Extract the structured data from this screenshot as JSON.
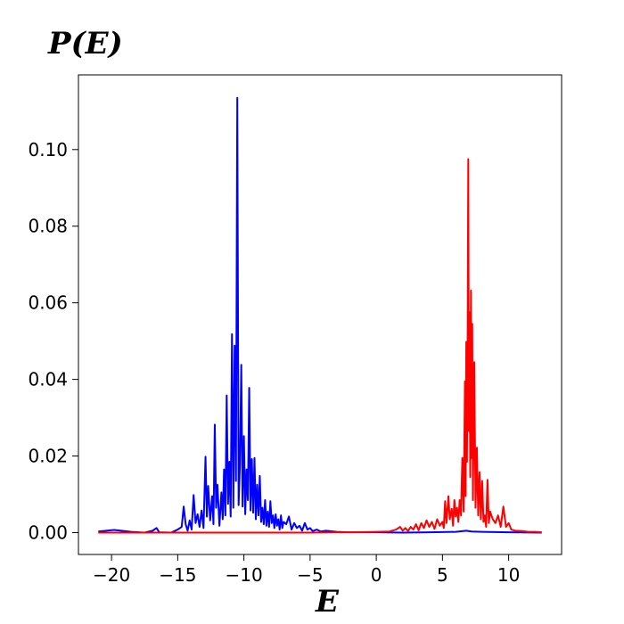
{
  "chart_data": {
    "type": "line",
    "title": "",
    "ylabel": "P(E)",
    "xlabel": "E",
    "xlim": [
      -22.5,
      14.0
    ],
    "ylim": [
      -0.0057,
      0.1195
    ],
    "xticks": [
      -20,
      -15,
      -10,
      -5,
      0,
      5,
      10
    ],
    "xtick_labels": [
      "−20",
      "−15",
      "−10",
      "−5",
      "0",
      "5",
      "10"
    ],
    "yticks": [
      0.0,
      0.02,
      0.04,
      0.06,
      0.08,
      0.1
    ],
    "ytick_labels": [
      "0.00",
      "0.02",
      "0.04",
      "0.06",
      "0.08",
      "0.10"
    ],
    "grid": false,
    "series": [
      {
        "color": "#0000ff",
        "points": [
          [
            -21.0,
            0.0003
          ],
          [
            -19.8,
            0.0007
          ],
          [
            -18.5,
            0.0002
          ],
          [
            -17.5,
            0.0
          ],
          [
            -16.9,
            0.0005
          ],
          [
            -16.6,
            0.0012
          ],
          [
            -16.4,
            0.0001
          ],
          [
            -15.5,
            0.0
          ],
          [
            -15.0,
            0.0008
          ],
          [
            -14.7,
            0.0015
          ],
          [
            -14.55,
            0.0068
          ],
          [
            -14.4,
            0.0022
          ],
          [
            -14.25,
            0.0005
          ],
          [
            -14.1,
            0.0032
          ],
          [
            -13.95,
            0.0008
          ],
          [
            -13.8,
            0.0098
          ],
          [
            -13.65,
            0.0025
          ],
          [
            -13.5,
            0.0048
          ],
          [
            -13.35,
            0.0015
          ],
          [
            -13.2,
            0.0058
          ],
          [
            -13.05,
            0.0012
          ],
          [
            -12.9,
            0.0198
          ],
          [
            -12.8,
            0.0042
          ],
          [
            -12.7,
            0.0122
          ],
          [
            -12.55,
            0.0032
          ],
          [
            -12.4,
            0.0095
          ],
          [
            -12.3,
            0.0022
          ],
          [
            -12.2,
            0.0282
          ],
          [
            -12.1,
            0.0065
          ],
          [
            -12.0,
            0.0125
          ],
          [
            -11.85,
            0.0018
          ],
          [
            -11.7,
            0.0105
          ],
          [
            -11.6,
            0.0035
          ],
          [
            -11.5,
            0.0165
          ],
          [
            -11.4,
            0.0045
          ],
          [
            -11.3,
            0.0358
          ],
          [
            -11.2,
            0.0075
          ],
          [
            -11.1,
            0.0185
          ],
          [
            -11.0,
            0.0042
          ],
          [
            -10.9,
            0.0518
          ],
          [
            -10.8,
            0.0065
          ],
          [
            -10.7,
            0.0488
          ],
          [
            -10.6,
            0.0135
          ],
          [
            -10.5,
            0.1135
          ],
          [
            -10.4,
            0.0072
          ],
          [
            -10.3,
            0.0178
          ],
          [
            -10.2,
            0.0438
          ],
          [
            -10.1,
            0.0068
          ],
          [
            -10.0,
            0.0252
          ],
          [
            -9.9,
            0.0048
          ],
          [
            -9.8,
            0.0165
          ],
          [
            -9.7,
            0.0085
          ],
          [
            -9.6,
            0.0378
          ],
          [
            -9.5,
            0.0058
          ],
          [
            -9.4,
            0.0192
          ],
          [
            -9.3,
            0.0052
          ],
          [
            -9.2,
            0.0195
          ],
          [
            -9.1,
            0.0035
          ],
          [
            -9.0,
            0.0125
          ],
          [
            -8.9,
            0.0045
          ],
          [
            -8.8,
            0.0148
          ],
          [
            -8.7,
            0.0028
          ],
          [
            -8.6,
            0.0065
          ],
          [
            -8.5,
            0.0022
          ],
          [
            -8.4,
            0.0085
          ],
          [
            -8.3,
            0.0018
          ],
          [
            -8.2,
            0.0055
          ],
          [
            -8.1,
            0.0015
          ],
          [
            -8.0,
            0.0082
          ],
          [
            -7.9,
            0.0025
          ],
          [
            -7.8,
            0.0045
          ],
          [
            -7.7,
            0.0012
          ],
          [
            -7.6,
            0.0048
          ],
          [
            -7.5,
            0.0018
          ],
          [
            -7.4,
            0.0035
          ],
          [
            -7.3,
            0.0008
          ],
          [
            -7.2,
            0.0045
          ],
          [
            -7.1,
            0.0012
          ],
          [
            -7.0,
            0.0028
          ],
          [
            -6.8,
            0.0022
          ],
          [
            -6.6,
            0.0042
          ],
          [
            -6.4,
            0.0008
          ],
          [
            -6.2,
            0.0025
          ],
          [
            -6.0,
            0.0012
          ],
          [
            -5.8,
            0.0018
          ],
          [
            -5.6,
            0.0005
          ],
          [
            -5.4,
            0.0025
          ],
          [
            -5.2,
            0.0008
          ],
          [
            -5.0,
            0.0012
          ],
          [
            -4.8,
            0.0004
          ],
          [
            -4.5,
            0.0008
          ],
          [
            -4.2,
            0.0003
          ],
          [
            -3.8,
            0.0005
          ],
          [
            -3.0,
            0.0002
          ],
          [
            -2.0,
            0.0001
          ],
          [
            0.0,
            0.0001
          ],
          [
            2.0,
            0.0
          ],
          [
            4.0,
            0.0001
          ],
          [
            6.0,
            0.0002
          ],
          [
            6.8,
            0.0005
          ],
          [
            7.2,
            0.0003
          ],
          [
            8.0,
            0.0002
          ],
          [
            10.0,
            0.0001
          ],
          [
            12.5,
            0.0
          ]
        ]
      },
      {
        "color": "#ff0000",
        "points": [
          [
            -21.0,
            0.0
          ],
          [
            -10.0,
            0.0
          ],
          [
            -5.0,
            0.0
          ],
          [
            -2.0,
            0.0001
          ],
          [
            0.0,
            0.0002
          ],
          [
            1.0,
            0.0003
          ],
          [
            1.5,
            0.0008
          ],
          [
            1.8,
            0.0015
          ],
          [
            2.0,
            0.0005
          ],
          [
            2.2,
            0.0012
          ],
          [
            2.4,
            0.0004
          ],
          [
            2.6,
            0.0015
          ],
          [
            2.8,
            0.0008
          ],
          [
            3.0,
            0.0022
          ],
          [
            3.2,
            0.0006
          ],
          [
            3.4,
            0.0025
          ],
          [
            3.6,
            0.0012
          ],
          [
            3.8,
            0.0032
          ],
          [
            4.0,
            0.0015
          ],
          [
            4.2,
            0.0028
          ],
          [
            4.4,
            0.001
          ],
          [
            4.6,
            0.0035
          ],
          [
            4.8,
            0.0018
          ],
          [
            5.0,
            0.0028
          ],
          [
            5.1,
            0.0012
          ],
          [
            5.2,
            0.0082
          ],
          [
            5.3,
            0.0025
          ],
          [
            5.45,
            0.0095
          ],
          [
            5.55,
            0.0035
          ],
          [
            5.7,
            0.0062
          ],
          [
            5.8,
            0.0018
          ],
          [
            5.9,
            0.0085
          ],
          [
            6.0,
            0.0042
          ],
          [
            6.1,
            0.0065
          ],
          [
            6.2,
            0.0028
          ],
          [
            6.3,
            0.0085
          ],
          [
            6.4,
            0.0045
          ],
          [
            6.5,
            0.0195
          ],
          [
            6.6,
            0.0055
          ],
          [
            6.7,
            0.0395
          ],
          [
            6.75,
            0.0095
          ],
          [
            6.8,
            0.0498
          ],
          [
            6.85,
            0.0185
          ],
          [
            6.9,
            0.0485
          ],
          [
            6.95,
            0.0975
          ],
          [
            7.0,
            0.0265
          ],
          [
            7.05,
            0.0575
          ],
          [
            7.1,
            0.0145
          ],
          [
            7.15,
            0.0632
          ],
          [
            7.2,
            0.0195
          ],
          [
            7.25,
            0.0545
          ],
          [
            7.3,
            0.0085
          ],
          [
            7.4,
            0.0445
          ],
          [
            7.5,
            0.0065
          ],
          [
            7.6,
            0.0222
          ],
          [
            7.7,
            0.0045
          ],
          [
            7.8,
            0.0158
          ],
          [
            7.9,
            0.0035
          ],
          [
            8.0,
            0.0135
          ],
          [
            8.1,
            0.0028
          ],
          [
            8.2,
            0.0045
          ],
          [
            8.3,
            0.0015
          ],
          [
            8.4,
            0.0138
          ],
          [
            8.5,
            0.0025
          ],
          [
            8.6,
            0.0055
          ],
          [
            8.8,
            0.0035
          ],
          [
            9.0,
            0.0025
          ],
          [
            9.2,
            0.0045
          ],
          [
            9.4,
            0.0015
          ],
          [
            9.6,
            0.0068
          ],
          [
            9.8,
            0.0015
          ],
          [
            10.0,
            0.0025
          ],
          [
            10.2,
            0.0008
          ],
          [
            10.5,
            0.0005
          ],
          [
            11.0,
            0.0004
          ],
          [
            11.5,
            0.0002
          ],
          [
            12.0,
            0.0002
          ],
          [
            12.5,
            0.0001
          ]
        ]
      }
    ]
  }
}
